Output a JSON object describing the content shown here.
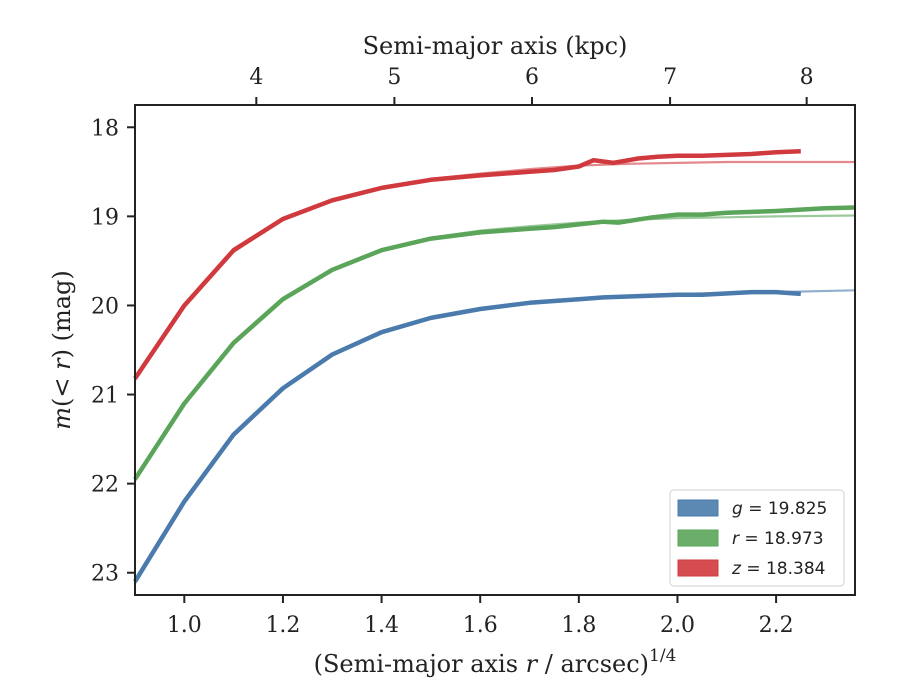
{
  "chart_data": {
    "type": "line",
    "title": "",
    "xlabel": "(Semi-major axis r / arcsec)^{1/4}",
    "ylabel": "m(< r) (mag)",
    "top_xlabel": "Semi-major axis (kpc)",
    "xlim": [
      0.9,
      2.36
    ],
    "ylim": [
      23.25,
      17.75
    ],
    "y_inverted": true,
    "x_ticks": [
      1.0,
      1.2,
      1.4,
      1.6,
      1.8,
      2.0,
      2.2
    ],
    "x_tick_labels": [
      "1.0",
      "1.2",
      "1.4",
      "1.6",
      "1.8",
      "2.0",
      "2.2"
    ],
    "y_ticks": [
      18,
      19,
      20,
      21,
      22,
      23
    ],
    "y_tick_labels": [
      "18",
      "19",
      "20",
      "21",
      "22",
      "23"
    ],
    "top_ticks_kpc": [
      4,
      5,
      6,
      7,
      8
    ],
    "top_tick_labels": [
      "4",
      "5",
      "6",
      "7",
      "8"
    ],
    "top_tick_positions_x": [
      1.146,
      1.426,
      1.705,
      1.985,
      2.262
    ],
    "grid": false,
    "legend_position": "lower-right",
    "series": [
      {
        "name": "g = 19.825",
        "band": "g",
        "value": "19.825",
        "color": "#4a7bac",
        "data": [
          [
            0.9,
            23.1
          ],
          [
            1.0,
            22.2
          ],
          [
            1.1,
            21.45
          ],
          [
            1.2,
            20.93
          ],
          [
            1.3,
            20.55
          ],
          [
            1.4,
            20.3
          ],
          [
            1.5,
            20.14
          ],
          [
            1.6,
            20.04
          ],
          [
            1.7,
            19.97
          ],
          [
            1.8,
            19.93
          ],
          [
            1.85,
            19.91
          ],
          [
            1.9,
            19.9
          ],
          [
            2.0,
            19.88
          ],
          [
            2.05,
            19.88
          ],
          [
            2.15,
            19.85
          ],
          [
            2.2,
            19.85
          ],
          [
            2.25,
            19.87
          ]
        ],
        "fit": [
          [
            0.9,
            23.12
          ],
          [
            1.0,
            22.22
          ],
          [
            1.1,
            21.46
          ],
          [
            1.2,
            20.94
          ],
          [
            1.3,
            20.56
          ],
          [
            1.4,
            20.3
          ],
          [
            1.5,
            20.14
          ],
          [
            1.6,
            20.04
          ],
          [
            1.7,
            19.97
          ],
          [
            1.8,
            19.93
          ],
          [
            1.9,
            19.9
          ],
          [
            2.0,
            19.87
          ],
          [
            2.1,
            19.86
          ],
          [
            2.2,
            19.85
          ],
          [
            2.36,
            19.83
          ]
        ]
      },
      {
        "name": "r = 18.973",
        "band": "r",
        "value": "18.973",
        "color": "#5aa55a",
        "data": [
          [
            0.9,
            21.95
          ],
          [
            1.0,
            21.1
          ],
          [
            1.1,
            20.42
          ],
          [
            1.2,
            19.93
          ],
          [
            1.3,
            19.6
          ],
          [
            1.4,
            19.38
          ],
          [
            1.5,
            19.25
          ],
          [
            1.6,
            19.18
          ],
          [
            1.7,
            19.14
          ],
          [
            1.75,
            19.12
          ],
          [
            1.8,
            19.09
          ],
          [
            1.85,
            19.06
          ],
          [
            1.88,
            19.07
          ],
          [
            1.95,
            19.01
          ],
          [
            2.0,
            18.98
          ],
          [
            2.05,
            18.98
          ],
          [
            2.1,
            18.96
          ],
          [
            2.2,
            18.94
          ],
          [
            2.3,
            18.91
          ],
          [
            2.36,
            18.9
          ]
        ],
        "fit": [
          [
            0.9,
            21.97
          ],
          [
            1.0,
            21.12
          ],
          [
            1.1,
            20.43
          ],
          [
            1.2,
            19.93
          ],
          [
            1.3,
            19.6
          ],
          [
            1.4,
            19.37
          ],
          [
            1.5,
            19.24
          ],
          [
            1.6,
            19.16
          ],
          [
            1.7,
            19.11
          ],
          [
            1.8,
            19.07
          ],
          [
            1.9,
            19.04
          ],
          [
            2.0,
            19.02
          ],
          [
            2.1,
            19.01
          ],
          [
            2.2,
            19.0
          ],
          [
            2.36,
            18.99
          ]
        ]
      },
      {
        "name": "z = 18.384",
        "band": "z",
        "value": "18.384",
        "color": "#d03a3e",
        "data": [
          [
            0.9,
            20.82
          ],
          [
            1.0,
            20.0
          ],
          [
            1.1,
            19.38
          ],
          [
            1.2,
            19.03
          ],
          [
            1.3,
            18.82
          ],
          [
            1.4,
            18.68
          ],
          [
            1.5,
            18.59
          ],
          [
            1.6,
            18.54
          ],
          [
            1.7,
            18.5
          ],
          [
            1.75,
            18.48
          ],
          [
            1.8,
            18.44
          ],
          [
            1.83,
            18.37
          ],
          [
            1.87,
            18.4
          ],
          [
            1.92,
            18.35
          ],
          [
            1.96,
            18.33
          ],
          [
            2.0,
            18.32
          ],
          [
            2.05,
            18.32
          ],
          [
            2.1,
            18.31
          ],
          [
            2.15,
            18.3
          ],
          [
            2.2,
            18.28
          ],
          [
            2.25,
            18.27
          ]
        ],
        "fit": [
          [
            0.9,
            20.84
          ],
          [
            1.0,
            20.02
          ],
          [
            1.1,
            19.4
          ],
          [
            1.2,
            19.03
          ],
          [
            1.3,
            18.81
          ],
          [
            1.4,
            18.67
          ],
          [
            1.5,
            18.58
          ],
          [
            1.6,
            18.52
          ],
          [
            1.7,
            18.47
          ],
          [
            1.8,
            18.43
          ],
          [
            1.9,
            18.41
          ],
          [
            2.0,
            18.4
          ],
          [
            2.1,
            18.39
          ],
          [
            2.2,
            18.39
          ],
          [
            2.36,
            18.39
          ]
        ]
      }
    ]
  }
}
